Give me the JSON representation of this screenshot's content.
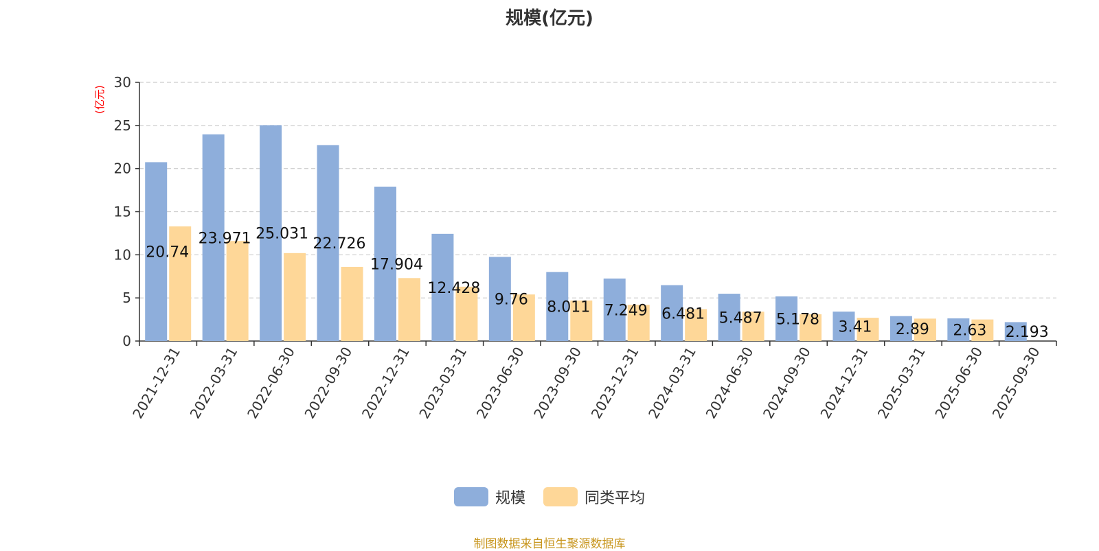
{
  "chart_data": {
    "type": "bar",
    "title": "规模(亿元)",
    "ylabel": "(亿元)",
    "xlabel": "",
    "ylim": [
      0,
      30
    ],
    "yticks": [
      0,
      5,
      10,
      15,
      20,
      25,
      30
    ],
    "grid": true,
    "legend_position": "bottom",
    "categories": [
      "2021-12-31",
      "2022-03-31",
      "2022-06-30",
      "2022-09-30",
      "2022-12-31",
      "2023-03-31",
      "2023-06-30",
      "2023-09-30",
      "2023-12-31",
      "2024-03-31",
      "2024-06-30",
      "2024-09-30",
      "2024-12-31",
      "2025-03-31",
      "2025-06-30",
      "2025-09-30"
    ],
    "series": [
      {
        "name": "规模",
        "color": "#8eaedb",
        "values": [
          20.74,
          23.971,
          25.031,
          22.726,
          17.904,
          12.428,
          9.76,
          8.011,
          7.249,
          6.481,
          5.487,
          5.178,
          3.41,
          2.89,
          2.63,
          2.193
        ],
        "labels": [
          "20.74",
          "23.971",
          "25.031",
          "22.726",
          "17.904",
          "12.428",
          "9.76",
          "8.011",
          "7.249",
          "6.481",
          "5.487",
          "5.178",
          "3.41",
          "2.89",
          "2.63",
          "2.193"
        ]
      },
      {
        "name": "同类平均",
        "color": "#fed798",
        "values": [
          13.3,
          11.6,
          10.2,
          8.6,
          7.3,
          6.3,
          5.4,
          4.7,
          4.2,
          3.7,
          3.4,
          3.1,
          2.7,
          2.6,
          2.5,
          null
        ]
      }
    ],
    "source": "制图数据来自恒生聚源数据库"
  }
}
